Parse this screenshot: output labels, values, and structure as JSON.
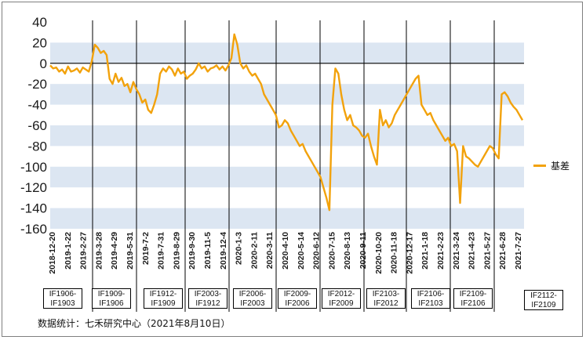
{
  "chart_data": {
    "type": "line",
    "ylim": [
      -160,
      40
    ],
    "yticks": [
      "40",
      "20",
      "0",
      "-20",
      "-40",
      "-60",
      "-80",
      "-100",
      "-120",
      "-140",
      "-160"
    ],
    "x_labels": [
      "2018-12-20",
      "2019-1-22",
      "2019-2-27",
      "2019-3-28",
      "2019-4-29",
      "2019-5-31",
      "2019-7-2",
      "2019-7-31",
      "2019-8-29",
      "2019-9-30",
      "2019-11-5",
      "2019-12-4",
      "2020-1-3",
      "2020-2-11",
      "2020-3-11",
      "2020-4-10",
      "2020-5-14",
      "2020-6-12",
      "2020-7-15",
      "2020-8-13",
      "2020-9-11",
      "2020-10-20",
      "2020-11-18",
      "2020-12-17",
      "2021-1-18",
      "2021-2-23",
      "2021-3-24",
      "2021-4-23",
      "2021-5-27",
      "2021-6-28",
      "2021-7-27"
    ],
    "grid_bands": true,
    "legend_position": "right",
    "series": [
      {
        "name": "基差",
        "color": "#F2A20C",
        "values": [
          -2,
          -5,
          -4,
          -8,
          -6,
          -10,
          -3,
          -8,
          -7,
          -5,
          -9,
          -4,
          -6,
          -8,
          2,
          18,
          15,
          10,
          12,
          8,
          -15,
          -20,
          -10,
          -18,
          -14,
          -22,
          -20,
          -28,
          -18,
          -25,
          -30,
          -38,
          -35,
          -45,
          -48,
          -40,
          -30,
          -10,
          -5,
          -8,
          -3,
          -6,
          -12,
          -5,
          -10,
          -8,
          -15,
          -12,
          -10,
          -6,
          0,
          -5,
          -3,
          -8,
          -5,
          -4,
          -2,
          -6,
          -3,
          -7,
          -2,
          5,
          28,
          18,
          0,
          -5,
          -2,
          -8,
          -12,
          -10,
          -15,
          -20,
          -30,
          -35,
          -40,
          -45,
          -50,
          -62,
          -60,
          -55,
          -58,
          -65,
          -70,
          -75,
          -80,
          -78,
          -85,
          -90,
          -95,
          -100,
          -105,
          -110,
          -120,
          -130,
          -142,
          -40,
          -5,
          -10,
          -30,
          -45,
          -55,
          -50,
          -60,
          -62,
          -65,
          -70,
          -72,
          -68,
          -80,
          -90,
          -98,
          -45,
          -60,
          -55,
          -62,
          -58,
          -50,
          -45,
          -40,
          -35,
          -30,
          -25,
          -20,
          -15,
          -12,
          -40,
          -45,
          -50,
          -48,
          -55,
          -60,
          -65,
          -70,
          -75,
          -72,
          -80,
          -78,
          -85,
          -135,
          -80,
          -90,
          -92,
          -95,
          -98,
          -100,
          -95,
          -90,
          -85,
          -80,
          -82,
          -88,
          -92,
          -30,
          -28,
          -32,
          -38,
          -42,
          -45,
          -50,
          -55
        ]
      }
    ]
  },
  "contract_boxes": [
    {
      "line1": "IF1906-",
      "line2": "IF1903"
    },
    {
      "line1": "IF1909-",
      "line2": "IF1906"
    },
    {
      "line1": "IF1912-",
      "line2": "IF1909"
    },
    {
      "line1": "IF2003-",
      "line2": "IF1912"
    },
    {
      "line1": "IF2006-",
      "line2": "IF2003"
    },
    {
      "line1": "IF2009-",
      "line2": "IF2006"
    },
    {
      "line1": "IF2012-",
      "line2": "IF2009"
    },
    {
      "line1": "IF2103-",
      "line2": "IF2012"
    },
    {
      "line1": "IF2106-",
      "line2": "IF2103"
    },
    {
      "line1": "IF2109-",
      "line2": "IF2106"
    },
    {
      "line1": "IF2112-",
      "line2": "IF2109"
    }
  ],
  "legend": {
    "label": "基差"
  },
  "source_note": "数据统计：七禾研究中心（2021年8月10日）"
}
